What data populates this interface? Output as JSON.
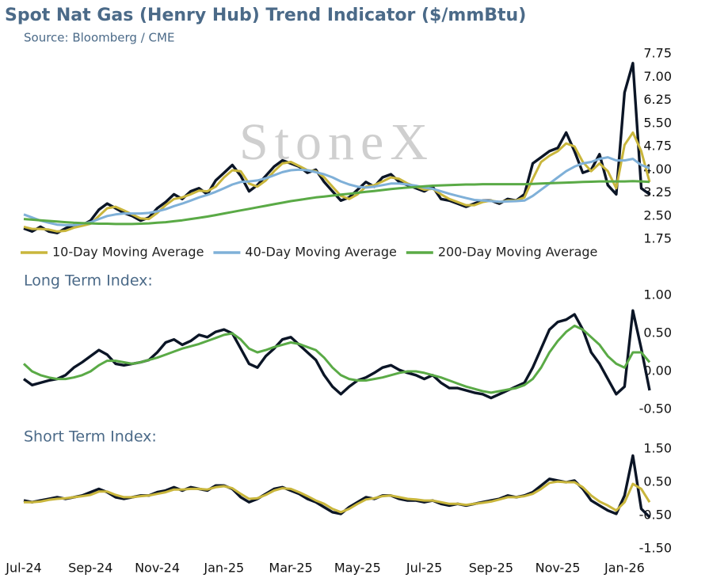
{
  "chart_data": [
    {
      "type": "line",
      "title": "Spot Nat Gas (Henry Hub) Trend Indicator ($/mmBtu)",
      "subtitle": "Source: Bloomberg / CME",
      "watermark": "StoneX",
      "ylim": [
        1.75,
        7.75
      ],
      "yticks": [
        1.75,
        {
          "value": 2.5,
          "label": "2.50"
        },
        3.25,
        {
          "value": 4,
          "label": "4.00"
        },
        4.75,
        {
          "value": 5.5,
          "label": "5.50"
        },
        6.25,
        {
          "value": 7,
          "label": "7.00"
        },
        7.75
      ],
      "legend": "bottom",
      "series": [
        {
          "color": "#0b1526",
          "values": [
            2.1,
            2.0,
            2.15,
            2.0,
            1.95,
            2.1,
            2.2,
            2.2,
            2.35,
            2.7,
            2.9,
            2.75,
            2.6,
            2.5,
            2.35,
            2.45,
            2.75,
            2.95,
            3.2,
            3.05,
            3.3,
            3.4,
            3.2,
            3.65,
            3.9,
            4.15,
            3.8,
            3.3,
            3.5,
            3.8,
            4.1,
            4.3,
            4.2,
            4.1,
            3.9,
            4.0,
            3.6,
            3.3,
            3.0,
            3.1,
            3.35,
            3.6,
            3.45,
            3.75,
            3.85,
            3.6,
            3.5,
            3.4,
            3.3,
            3.45,
            3.05,
            3.0,
            2.9,
            2.8,
            2.9,
            3.0,
            3.0,
            2.9,
            3.05,
            3.0,
            3.2,
            4.2,
            4.4,
            4.6,
            4.7,
            5.2,
            4.6,
            3.9,
            4.0,
            4.5,
            3.5,
            3.2,
            6.5,
            7.45,
            3.4,
            3.2
          ]
        },
        {
          "name": "10-Day Moving Average",
          "color": "#c9b63c",
          "values": [
            2.15,
            2.08,
            2.08,
            2.06,
            2.0,
            2.02,
            2.12,
            2.18,
            2.25,
            2.5,
            2.75,
            2.8,
            2.68,
            2.55,
            2.42,
            2.4,
            2.6,
            2.85,
            3.05,
            3.1,
            3.2,
            3.32,
            3.3,
            3.45,
            3.75,
            3.98,
            3.95,
            3.55,
            3.45,
            3.65,
            3.95,
            4.2,
            4.25,
            4.12,
            3.98,
            3.95,
            3.75,
            3.45,
            3.15,
            3.05,
            3.2,
            3.45,
            3.5,
            3.62,
            3.75,
            3.7,
            3.55,
            3.45,
            3.35,
            3.38,
            3.2,
            3.05,
            2.95,
            2.85,
            2.85,
            2.95,
            3.0,
            2.95,
            3.0,
            3.0,
            3.1,
            3.7,
            4.25,
            4.45,
            4.6,
            4.85,
            4.75,
            4.25,
            3.95,
            4.2,
            3.95,
            3.4,
            4.8,
            5.2,
            4.6,
            3.6
          ]
        },
        {
          "name": "40-Day Moving Average",
          "color": "#7fb0d8",
          "values": [
            2.55,
            2.45,
            2.35,
            2.28,
            2.22,
            2.2,
            2.2,
            2.25,
            2.3,
            2.4,
            2.5,
            2.55,
            2.58,
            2.58,
            2.58,
            2.6,
            2.65,
            2.72,
            2.82,
            2.9,
            3.0,
            3.1,
            3.18,
            3.28,
            3.4,
            3.52,
            3.6,
            3.62,
            3.65,
            3.72,
            3.82,
            3.92,
            3.98,
            4.0,
            3.98,
            3.92,
            3.85,
            3.75,
            3.62,
            3.52,
            3.45,
            3.42,
            3.45,
            3.5,
            3.55,
            3.55,
            3.52,
            3.48,
            3.42,
            3.38,
            3.3,
            3.22,
            3.15,
            3.08,
            3.02,
            3.0,
            2.98,
            2.96,
            2.97,
            2.98,
            3.0,
            3.15,
            3.35,
            3.55,
            3.75,
            3.95,
            4.1,
            4.2,
            4.25,
            4.35,
            4.4,
            4.3,
            4.3,
            4.35,
            4.15,
            4.05
          ]
        },
        {
          "name": "200-Day Moving Average",
          "color": "#5aaa46",
          "values": [
            2.4,
            2.38,
            2.36,
            2.34,
            2.32,
            2.3,
            2.28,
            2.27,
            2.26,
            2.25,
            2.25,
            2.24,
            2.24,
            2.24,
            2.25,
            2.26,
            2.28,
            2.3,
            2.33,
            2.36,
            2.4,
            2.44,
            2.48,
            2.53,
            2.58,
            2.63,
            2.68,
            2.73,
            2.78,
            2.83,
            2.88,
            2.93,
            2.98,
            3.02,
            3.06,
            3.1,
            3.13,
            3.16,
            3.19,
            3.22,
            3.25,
            3.28,
            3.31,
            3.34,
            3.37,
            3.4,
            3.42,
            3.44,
            3.46,
            3.48,
            3.49,
            3.5,
            3.51,
            3.52,
            3.52,
            3.53,
            3.53,
            3.53,
            3.53,
            3.53,
            3.53,
            3.54,
            3.55,
            3.56,
            3.57,
            3.58,
            3.59,
            3.6,
            3.61,
            3.62,
            3.62,
            3.62,
            3.62,
            3.63,
            3.62,
            3.6
          ]
        }
      ]
    },
    {
      "type": "line",
      "title": "Long Term Index:",
      "ylim": [
        -0.5,
        1.0
      ],
      "yticks": [
        {
          "value": -0.5,
          "label": "-0.50"
        },
        {
          "value": 0,
          "label": "0.00"
        },
        {
          "value": 0.5,
          "label": "0.50"
        },
        {
          "value": 1,
          "label": "1.00"
        }
      ],
      "series": [
        {
          "color": "#0b1526",
          "values": [
            -0.1,
            -0.18,
            -0.15,
            -0.12,
            -0.1,
            -0.05,
            0.05,
            0.12,
            0.2,
            0.28,
            0.22,
            0.1,
            0.08,
            0.1,
            0.12,
            0.15,
            0.25,
            0.38,
            0.42,
            0.35,
            0.4,
            0.48,
            0.45,
            0.52,
            0.55,
            0.5,
            0.3,
            0.1,
            0.05,
            0.2,
            0.3,
            0.42,
            0.45,
            0.35,
            0.25,
            0.15,
            -0.05,
            -0.2,
            -0.3,
            -0.2,
            -0.12,
            -0.08,
            -0.02,
            0.05,
            0.08,
            0.02,
            -0.02,
            -0.05,
            -0.1,
            -0.05,
            -0.15,
            -0.22,
            -0.22,
            -0.25,
            -0.28,
            -0.3,
            -0.35,
            -0.3,
            -0.25,
            -0.2,
            -0.15,
            0.05,
            0.3,
            0.55,
            0.65,
            0.68,
            0.75,
            0.55,
            0.25,
            0.1,
            -0.1,
            -0.3,
            -0.2,
            0.8,
            0.3,
            -0.25
          ]
        },
        {
          "color": "#5aaa46",
          "values": [
            0.1,
            0.0,
            -0.05,
            -0.08,
            -0.1,
            -0.1,
            -0.08,
            -0.05,
            0.0,
            0.08,
            0.14,
            0.14,
            0.12,
            0.1,
            0.12,
            0.15,
            0.18,
            0.22,
            0.26,
            0.3,
            0.33,
            0.36,
            0.4,
            0.44,
            0.48,
            0.5,
            0.42,
            0.3,
            0.25,
            0.28,
            0.32,
            0.35,
            0.38,
            0.36,
            0.32,
            0.28,
            0.18,
            0.05,
            -0.05,
            -0.1,
            -0.12,
            -0.12,
            -0.1,
            -0.08,
            -0.05,
            -0.02,
            0.0,
            0.0,
            -0.02,
            -0.05,
            -0.08,
            -0.12,
            -0.16,
            -0.2,
            -0.23,
            -0.26,
            -0.28,
            -0.26,
            -0.24,
            -0.22,
            -0.18,
            -0.1,
            0.05,
            0.25,
            0.4,
            0.52,
            0.6,
            0.55,
            0.45,
            0.35,
            0.2,
            0.1,
            0.05,
            0.25,
            0.25,
            0.12
          ]
        }
      ]
    },
    {
      "type": "line",
      "title": "Short Term Index:",
      "ylim": [
        -1.5,
        1.5
      ],
      "yticks": [
        {
          "value": -1.5,
          "label": "-1.50"
        },
        {
          "value": -0.5,
          "label": "-0.50"
        },
        {
          "value": 0.5,
          "label": "0.50"
        },
        {
          "value": 1.5,
          "label": "1.50"
        }
      ],
      "categories": [
        "Jul-24",
        null,
        null,
        null,
        null,
        null,
        null,
        null,
        "Sep-24",
        null,
        null,
        null,
        null,
        null,
        null,
        null,
        "Nov-24",
        null,
        null,
        null,
        null,
        null,
        null,
        null,
        "Jan-25",
        null,
        null,
        null,
        null,
        null,
        null,
        null,
        "Mar-25",
        null,
        null,
        null,
        null,
        null,
        null,
        null,
        "May-25",
        null,
        null,
        null,
        null,
        null,
        null,
        null,
        "Jul-25",
        null,
        null,
        null,
        null,
        null,
        null,
        null,
        "Sep-25",
        null,
        null,
        null,
        null,
        null,
        null,
        null,
        "Nov-25",
        null,
        null,
        null,
        null,
        null,
        null,
        null,
        "Jan-26",
        null,
        null,
        null
      ],
      "series": [
        {
          "color": "#0b1526",
          "values": [
            -0.05,
            -0.1,
            -0.05,
            0.0,
            0.05,
            0.0,
            0.05,
            0.1,
            0.2,
            0.3,
            0.2,
            0.05,
            0.0,
            0.05,
            0.1,
            0.1,
            0.2,
            0.25,
            0.35,
            0.25,
            0.35,
            0.3,
            0.25,
            0.4,
            0.4,
            0.3,
            0.05,
            -0.1,
            0.0,
            0.15,
            0.3,
            0.35,
            0.25,
            0.15,
            0.0,
            -0.1,
            -0.25,
            -0.4,
            -0.45,
            -0.25,
            -0.1,
            0.05,
            0.0,
            0.1,
            0.1,
            0.0,
            -0.05,
            -0.05,
            -0.1,
            -0.05,
            -0.15,
            -0.2,
            -0.15,
            -0.2,
            -0.15,
            -0.1,
            -0.05,
            0.0,
            0.1,
            0.05,
            0.1,
            0.2,
            0.4,
            0.6,
            0.55,
            0.5,
            0.55,
            0.3,
            -0.05,
            -0.2,
            -0.35,
            -0.45,
            0.1,
            1.3,
            -0.3,
            -0.55
          ]
        },
        {
          "color": "#c9b63c",
          "values": [
            -0.1,
            -0.1,
            -0.08,
            -0.03,
            0.0,
            0.02,
            0.05,
            0.08,
            0.12,
            0.22,
            0.22,
            0.12,
            0.05,
            0.05,
            0.08,
            0.1,
            0.15,
            0.2,
            0.28,
            0.28,
            0.3,
            0.3,
            0.28,
            0.35,
            0.38,
            0.32,
            0.15,
            0.0,
            0.02,
            0.12,
            0.25,
            0.32,
            0.3,
            0.2,
            0.08,
            -0.05,
            -0.15,
            -0.3,
            -0.4,
            -0.3,
            -0.15,
            -0.02,
            0.02,
            0.08,
            0.1,
            0.05,
            0.0,
            -0.02,
            -0.05,
            -0.05,
            -0.1,
            -0.15,
            -0.15,
            -0.18,
            -0.15,
            -0.12,
            -0.08,
            -0.02,
            0.05,
            0.05,
            0.08,
            0.15,
            0.3,
            0.48,
            0.52,
            0.5,
            0.5,
            0.35,
            0.1,
            -0.08,
            -0.2,
            -0.35,
            -0.1,
            0.45,
            0.3,
            -0.1
          ]
        }
      ]
    }
  ]
}
